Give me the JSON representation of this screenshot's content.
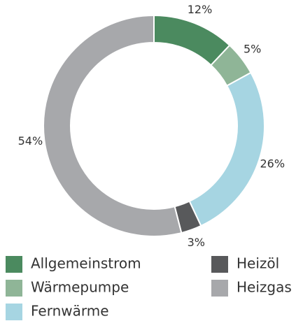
{
  "chart_data": {
    "type": "pie",
    "categories": [
      "Allgemeinstrom",
      "Wärmepumpe",
      "Fernwärme",
      "Heizöl",
      "Heizgas"
    ],
    "values": [
      12,
      5,
      26,
      3,
      54
    ],
    "value_labels": [
      "12%",
      "5%",
      "26%",
      "3%",
      "54%"
    ],
    "colors": [
      "#4b8a5f",
      "#8fb597",
      "#a6d5e2",
      "#58595b",
      "#a7a8ab"
    ],
    "donut": true,
    "legend": "bottom"
  }
}
